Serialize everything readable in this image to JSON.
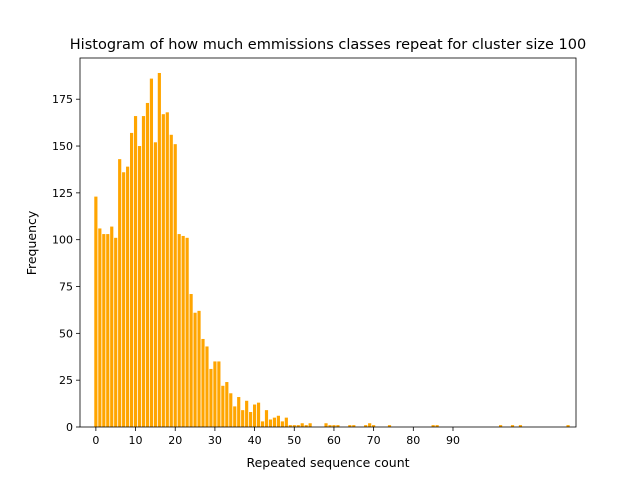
{
  "chart_data": {
    "type": "bar",
    "title": "Histogram of how much emmissions classes repeat for cluster size 100",
    "xlabel": "Repeated sequence count",
    "ylabel": "Frequency",
    "xlim": [
      -4,
      121
    ],
    "ylim": [
      0,
      197
    ],
    "xticks": [
      0,
      10,
      20,
      30,
      40,
      50,
      60,
      70,
      80,
      90
    ],
    "yticks": [
      0,
      25,
      50,
      75,
      100,
      125,
      150,
      175
    ],
    "bar_color": "#FFA500",
    "grid": false,
    "x": [
      0,
      1,
      2,
      3,
      4,
      5,
      6,
      7,
      8,
      9,
      10,
      11,
      12,
      13,
      14,
      15,
      16,
      17,
      18,
      19,
      20,
      21,
      22,
      23,
      24,
      25,
      26,
      27,
      28,
      29,
      30,
      31,
      32,
      33,
      34,
      35,
      36,
      37,
      38,
      39,
      40,
      41,
      42,
      43,
      44,
      45,
      46,
      47,
      48,
      49,
      50,
      51,
      52,
      53,
      54,
      55,
      56,
      58,
      59,
      60,
      61,
      62,
      64,
      65,
      68,
      69,
      70,
      74,
      85,
      86,
      102,
      105,
      107,
      119
    ],
    "values": [
      123,
      106,
      103,
      103,
      107,
      101,
      143,
      136,
      139,
      157,
      166,
      150,
      166,
      173,
      186,
      152,
      189,
      167,
      168,
      156,
      151,
      103,
      102,
      101,
      71,
      61,
      62,
      47,
      43,
      31,
      35,
      35,
      22,
      24,
      18,
      11,
      16,
      9,
      14,
      8,
      12,
      13,
      3,
      9,
      4,
      5,
      6,
      3,
      5,
      1,
      1,
      1,
      2,
      1,
      2,
      0,
      0,
      2,
      1,
      1,
      1,
      0,
      1,
      1,
      1,
      2,
      1,
      1,
      1,
      1,
      1,
      1,
      1,
      1
    ]
  }
}
